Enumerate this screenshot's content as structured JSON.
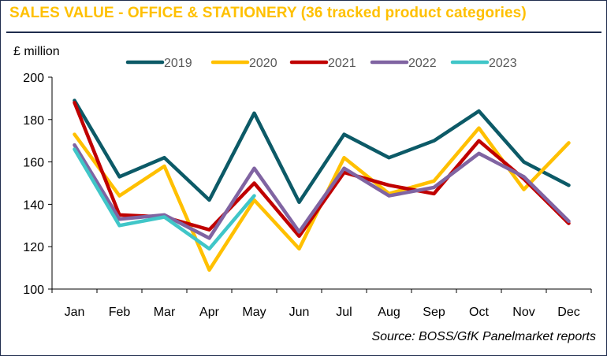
{
  "chart_data": {
    "type": "line",
    "title": "SALES VALUE - OFFICE & STATIONERY (36 tracked product categories)",
    "ylabel": "£ million",
    "xlabel": "",
    "source": "Source: BOSS/GfK Panelmarket reports",
    "categories": [
      "Jan",
      "Feb",
      "Mar",
      "Apr",
      "May",
      "Jun",
      "Jul",
      "Aug",
      "Sep",
      "Oct",
      "Nov",
      "Dec"
    ],
    "ylim": [
      100,
      200
    ],
    "yticks": [
      100,
      120,
      140,
      160,
      180,
      200
    ],
    "grid": false,
    "legend_position": "top",
    "series": [
      {
        "name": "2019",
        "color": "#0c5a67",
        "values": [
          189,
          153,
          162,
          142,
          183,
          141,
          173,
          162,
          170,
          184,
          160,
          149
        ]
      },
      {
        "name": "2020",
        "color": "#ffc000",
        "values": [
          173,
          144,
          158,
          109,
          142,
          119,
          162,
          145,
          151,
          176,
          147,
          169
        ]
      },
      {
        "name": "2021",
        "color": "#c00000",
        "values": [
          188,
          135,
          134,
          128,
          150,
          125,
          155,
          149,
          145,
          170,
          152,
          131
        ]
      },
      {
        "name": "2022",
        "color": "#8064a2",
        "values": [
          168,
          133,
          135,
          124,
          157,
          127,
          157,
          144,
          148,
          164,
          153,
          132
        ]
      },
      {
        "name": "2023",
        "color": "#40c6c8",
        "values": [
          166,
          130,
          134,
          119,
          144,
          null,
          null,
          null,
          null,
          null,
          null,
          null
        ]
      }
    ]
  }
}
